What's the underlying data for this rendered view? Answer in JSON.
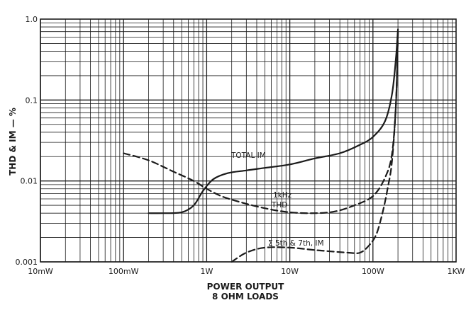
{
  "chart_data": {
    "type": "line",
    "title": "",
    "xlabel_line1": "POWER OUTPUT",
    "xlabel_line2": "8 OHM LOADS",
    "ylabel": "THD & IM — %",
    "x_scale": "log",
    "y_scale": "log",
    "xlim": [
      0.01,
      1000
    ],
    "ylim": [
      0.001,
      1.0
    ],
    "grid": true,
    "x_ticks": [
      {
        "value": 0.01,
        "label": "10mW"
      },
      {
        "value": 0.1,
        "label": "100mW"
      },
      {
        "value": 1,
        "label": "1W"
      },
      {
        "value": 10,
        "label": "10W"
      },
      {
        "value": 100,
        "label": "100W"
      },
      {
        "value": 1000,
        "label": "1KW"
      }
    ],
    "y_ticks": [
      {
        "value": 0.001,
        "label": "0.001"
      },
      {
        "value": 0.01,
        "label": "0.01"
      },
      {
        "value": 0.1,
        "label": "0.1"
      },
      {
        "value": 1.0,
        "label": "1.0"
      }
    ],
    "series": [
      {
        "name": "TOTAL IM",
        "style": "solid",
        "points": [
          [
            0.2,
            0.004
          ],
          [
            0.3,
            0.004
          ],
          [
            0.5,
            0.0041
          ],
          [
            0.7,
            0.005
          ],
          [
            0.9,
            0.0075
          ],
          [
            1.2,
            0.0105
          ],
          [
            1.8,
            0.0125
          ],
          [
            3,
            0.0135
          ],
          [
            5,
            0.0145
          ],
          [
            10,
            0.016
          ],
          [
            20,
            0.019
          ],
          [
            40,
            0.022
          ],
          [
            70,
            0.028
          ],
          [
            100,
            0.035
          ],
          [
            140,
            0.055
          ],
          [
            170,
            0.12
          ],
          [
            190,
            0.35
          ],
          [
            200,
            0.75
          ]
        ]
      },
      {
        "name": "1kHz THD",
        "style": "dashed",
        "points": [
          [
            0.1,
            0.022
          ],
          [
            0.2,
            0.018
          ],
          [
            0.4,
            0.013
          ],
          [
            0.7,
            0.01
          ],
          [
            1,
            0.008
          ],
          [
            1.5,
            0.0065
          ],
          [
            2.5,
            0.0055
          ],
          [
            5,
            0.0046
          ],
          [
            10,
            0.0041
          ],
          [
            20,
            0.004
          ],
          [
            35,
            0.0042
          ],
          [
            60,
            0.005
          ],
          [
            100,
            0.0065
          ],
          [
            140,
            0.011
          ],
          [
            170,
            0.022
          ],
          [
            190,
            0.1
          ],
          [
            200,
            0.7
          ]
        ]
      },
      {
        "name": "Σ 5th & 7th, IM",
        "style": "dashed",
        "points": [
          [
            2,
            0.001
          ],
          [
            3,
            0.0013
          ],
          [
            5,
            0.0015
          ],
          [
            10,
            0.0015
          ],
          [
            20,
            0.0014
          ],
          [
            50,
            0.0013
          ],
          [
            70,
            0.0013
          ],
          [
            90,
            0.0016
          ],
          [
            110,
            0.0022
          ],
          [
            130,
            0.004
          ],
          [
            150,
            0.008
          ],
          [
            170,
            0.018
          ],
          [
            190,
            0.1
          ],
          [
            200,
            0.7
          ]
        ]
      }
    ],
    "annotations": {
      "total_im": "TOTAL IM",
      "thd_line1": "1kHz",
      "thd_line2": "THD",
      "sum57": "Σ 5th & 7th, IM"
    }
  }
}
